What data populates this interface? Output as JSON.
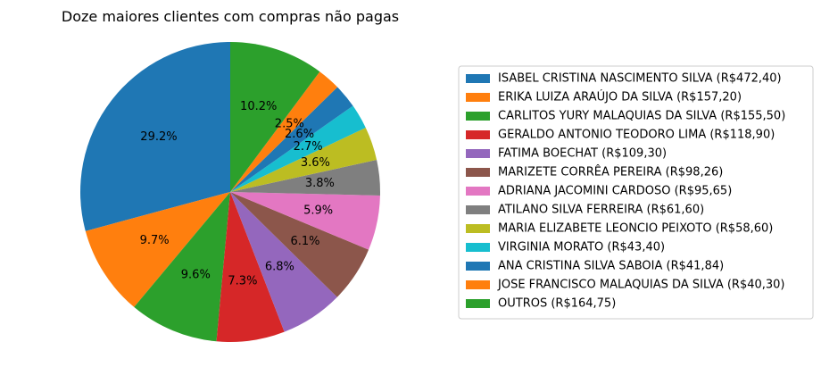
{
  "chart_data": {
    "type": "pie",
    "title": "Doze maiores clientes com compras não pagas",
    "start_angle_deg": 90,
    "direction": "counterclockwise",
    "legend_position": "right",
    "slices": [
      {
        "label": "ISABEL CRISTINA NASCIMENTO SILVA  (R$472,40)",
        "value": 472.4,
        "pct_label": "29.2%",
        "color": "#1f77b4"
      },
      {
        "label": "ERIKA LUIZA  ARAÚJO DA SILVA (R$157,20)",
        "value": 157.2,
        "pct_label": "9.7%",
        "color": "#ff7f0e"
      },
      {
        "label": "CARLITOS YURY MALAQUIAS DA SILVA  (R$155,50)",
        "value": 155.5,
        "pct_label": "9.6%",
        "color": "#2ca02c"
      },
      {
        "label": "GERALDO ANTONIO TEODORO LIMA  (R$118,90)",
        "value": 118.9,
        "pct_label": "7.3%",
        "color": "#d62728"
      },
      {
        "label": "FATIMA BOECHAT (R$109,30)",
        "value": 109.3,
        "pct_label": "6.8%",
        "color": "#9467bd"
      },
      {
        "label": "MARIZETE CORRÊA PEREIRA  (R$98,26)",
        "value": 98.26,
        "pct_label": "6.1%",
        "color": "#8c564b"
      },
      {
        "label": "ADRIANA JACOMINI CARDOSO (R$95,65)",
        "value": 95.65,
        "pct_label": "5.9%",
        "color": "#e377c2"
      },
      {
        "label": "ATILANO SILVA FERREIRA (R$61,60)",
        "value": 61.6,
        "pct_label": "3.8%",
        "color": "#7f7f7f"
      },
      {
        "label": "MARIA ELIZABETE LEONCIO PEIXOTO (R$58,60)",
        "value": 58.6,
        "pct_label": "3.6%",
        "color": "#bcbd22"
      },
      {
        "label": "VIRGINIA MORATO (R$43,40)",
        "value": 43.4,
        "pct_label": "2.7%",
        "color": "#17becf"
      },
      {
        "label": "ANA CRISTINA SILVA SABOIA (R$41,84)",
        "value": 41.84,
        "pct_label": "2.6%",
        "color": "#1f77b4"
      },
      {
        "label": "JOSE FRANCISCO MALAQUIAS DA SILVA  (R$40,30)",
        "value": 40.3,
        "pct_label": "2.5%",
        "color": "#ff7f0e"
      },
      {
        "label": "OUTROS (R$164,75)",
        "value": 164.75,
        "pct_label": "10.2%",
        "color": "#2ca02c"
      }
    ]
  }
}
